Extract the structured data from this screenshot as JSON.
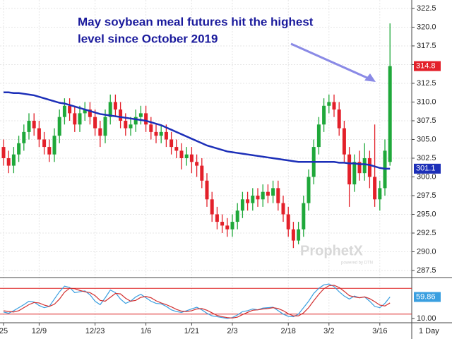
{
  "chart_data": {
    "type": "candlestick",
    "annotation": [
      "May soybean meal futures hit the highest",
      "level since October 2019"
    ],
    "watermark": {
      "title": "ProphetX",
      "subtitle": "powered by DTN"
    },
    "interval": "1 Day",
    "categories": [
      "25",
      null,
      null,
      null,
      null,
      null,
      null,
      "12/9",
      null,
      null,
      null,
      null,
      null,
      null,
      null,
      null,
      null,
      null,
      "12/23",
      null,
      null,
      null,
      null,
      null,
      null,
      null,
      null,
      null,
      "1/6",
      null,
      null,
      null,
      null,
      null,
      null,
      null,
      null,
      "1/21",
      null,
      null,
      null,
      null,
      null,
      null,
      null,
      "2/3",
      null,
      null,
      null,
      null,
      null,
      null,
      null,
      null,
      null,
      null,
      "2/18",
      null,
      null,
      null,
      null,
      null,
      null,
      null,
      "3/2",
      null,
      null,
      null,
      null,
      null,
      null,
      null,
      null,
      null,
      "3/16",
      null,
      null
    ],
    "open": [
      304.0,
      302.5,
      301.5,
      303.0,
      304.5,
      306.0,
      307.5,
      306.5,
      305.0,
      304.0,
      303.0,
      305.5,
      308.0,
      309.5,
      308.5,
      307.0,
      308.5,
      309.0,
      308.0,
      306.5,
      305.5,
      308.0,
      310.0,
      309.0,
      307.5,
      306.5,
      307.0,
      308.0,
      308.5,
      307.0,
      306.0,
      305.5,
      306.0,
      305.0,
      304.0,
      303.5,
      302.5,
      303.0,
      302.0,
      301.5,
      299.5,
      297.0,
      295.0,
      294.0,
      293.5,
      293.0,
      294.0,
      295.5,
      297.0,
      296.5,
      297.5,
      297.0,
      298.0,
      297.5,
      298.5,
      296.5,
      295.0,
      293.0,
      291.5,
      293.0,
      296.5,
      300.0,
      304.0,
      307.0,
      309.5,
      310.0,
      309.0,
      306.5,
      303.0,
      299.0,
      302.0,
      300.5,
      302.5,
      300.0,
      297.0,
      298.5,
      302.0
    ],
    "high": [
      305.0,
      303.5,
      304.0,
      305.5,
      307.0,
      308.5,
      308.5,
      307.5,
      306.0,
      305.0,
      306.5,
      309.0,
      310.5,
      310.5,
      309.5,
      309.5,
      310.0,
      310.0,
      309.0,
      307.5,
      309.0,
      311.0,
      311.0,
      310.0,
      308.5,
      308.0,
      309.0,
      309.5,
      309.5,
      308.0,
      307.0,
      307.0,
      307.0,
      306.0,
      305.0,
      304.5,
      304.0,
      304.0,
      303.0,
      302.5,
      300.5,
      298.0,
      296.0,
      295.0,
      294.5,
      295.0,
      296.5,
      298.0,
      298.0,
      298.5,
      298.5,
      299.0,
      299.0,
      299.5,
      299.5,
      297.5,
      296.0,
      294.0,
      294.0,
      297.5,
      301.0,
      305.0,
      308.0,
      310.5,
      311.0,
      311.0,
      310.0,
      307.5,
      304.0,
      303.0,
      303.5,
      304.5,
      303.5,
      307.0,
      299.5,
      305.0,
      320.5
    ],
    "low": [
      301.5,
      300.5,
      300.5,
      302.0,
      303.5,
      305.0,
      305.5,
      304.0,
      303.0,
      302.0,
      302.0,
      304.5,
      307.0,
      307.5,
      306.0,
      306.0,
      307.5,
      307.0,
      305.5,
      304.0,
      304.5,
      307.0,
      308.0,
      306.5,
      305.5,
      305.5,
      306.0,
      307.0,
      306.0,
      305.0,
      304.5,
      304.5,
      304.0,
      303.0,
      302.5,
      301.0,
      301.5,
      300.5,
      300.0,
      298.5,
      296.0,
      294.0,
      293.0,
      292.5,
      292.0,
      292.0,
      293.0,
      294.5,
      295.5,
      295.5,
      296.0,
      296.0,
      296.5,
      296.5,
      295.5,
      294.0,
      292.0,
      290.5,
      291.0,
      292.0,
      295.5,
      299.0,
      303.0,
      306.0,
      308.5,
      308.0,
      305.5,
      302.0,
      296.0,
      298.0,
      299.5,
      299.5,
      298.5,
      296.0,
      295.5,
      297.5,
      301.5
    ],
    "close": [
      302.5,
      301.5,
      303.0,
      304.5,
      306.0,
      307.5,
      306.5,
      305.0,
      304.0,
      303.0,
      305.5,
      308.0,
      309.5,
      308.5,
      307.0,
      308.5,
      309.0,
      308.0,
      306.5,
      305.5,
      308.0,
      310.0,
      309.0,
      307.5,
      306.5,
      307.0,
      308.0,
      308.5,
      307.0,
      306.0,
      305.5,
      306.0,
      305.0,
      304.0,
      303.5,
      302.5,
      303.0,
      302.0,
      301.5,
      299.5,
      297.0,
      295.0,
      294.0,
      293.5,
      293.0,
      294.0,
      295.5,
      297.0,
      296.5,
      297.5,
      297.0,
      298.0,
      297.5,
      298.5,
      296.5,
      295.0,
      293.0,
      291.5,
      293.0,
      296.5,
      300.0,
      304.0,
      307.0,
      309.5,
      310.0,
      309.0,
      306.5,
      303.0,
      299.0,
      302.0,
      300.5,
      302.5,
      300.0,
      297.0,
      298.5,
      303.5,
      314.8
    ],
    "up_color": "#1fa83a",
    "down_color": "#e3202a",
    "last_close_color": "#e3202a",
    "ylim": [
      286.65,
      323.63
    ],
    "yticks": [
      287.5,
      {
        "value": 290,
        "label": "290.0"
      },
      292.5,
      {
        "value": 295,
        "label": "295.0"
      },
      297.5,
      {
        "value": 300,
        "label": "300.0"
      },
      302.5,
      {
        "value": 305,
        "label": "305.0"
      },
      307.5,
      {
        "value": 310,
        "label": "310.0"
      },
      312.5,
      {
        "value": 315,
        "label": "315.0"
      },
      317.5,
      {
        "value": 320,
        "label": "320.0"
      },
      322.5
    ],
    "grid": true,
    "moving_average": {
      "color": "#1c2fb8",
      "values": [
        311.3,
        311.3,
        311.2,
        311.2,
        311.1,
        311.0,
        310.9,
        310.7,
        310.5,
        310.3,
        310.1,
        309.9,
        309.8,
        309.6,
        309.4,
        309.2,
        309.0,
        308.8,
        308.6,
        308.4,
        308.3,
        308.2,
        308.1,
        308.0,
        307.9,
        307.8,
        307.7,
        307.6,
        307.5,
        307.3,
        307.1,
        306.9,
        306.6,
        306.3,
        306.0,
        305.7,
        305.4,
        305.1,
        304.8,
        304.5,
        304.2,
        304.0,
        303.8,
        303.6,
        303.4,
        303.3,
        303.2,
        303.1,
        303.0,
        302.9,
        302.8,
        302.7,
        302.6,
        302.5,
        302.4,
        302.3,
        302.2,
        302.1,
        302.0,
        302.0,
        302.0,
        302.0,
        302.0,
        302.0,
        302.0,
        302.0,
        301.9,
        301.9,
        301.8,
        301.8,
        301.7,
        301.7,
        301.6,
        301.4,
        301.2,
        301.1,
        301.1
      ]
    },
    "indicator": {
      "type": "stochastic",
      "ylim": [
        0,
        100
      ],
      "yticks": [
        {
          "value": 10,
          "label": "10.00"
        }
      ],
      "reference_lines": [
        20,
        80
      ],
      "reference_color": "#d22",
      "series": [
        {
          "color": "#3a9fe0",
          "values": [
            25,
            22,
            28,
            35,
            42,
            50,
            48,
            40,
            35,
            38,
            55,
            72,
            85,
            82,
            70,
            72,
            74,
            65,
            50,
            42,
            58,
            76,
            70,
            55,
            45,
            50,
            60,
            66,
            58,
            50,
            45,
            44,
            38,
            30,
            26,
            24,
            28,
            32,
            36,
            30,
            22,
            16,
            14,
            12,
            10,
            12,
            18,
            26,
            28,
            32,
            30,
            34,
            35,
            36,
            28,
            20,
            15,
            14,
            20,
            35,
            50,
            68,
            80,
            88,
            90,
            84,
            72,
            62,
            55,
            62,
            58,
            60,
            50,
            38,
            35,
            45,
            59.86
          ]
        },
        {
          "color": "#d23030",
          "values": [
            28,
            26,
            25,
            28,
            35,
            42,
            47,
            46,
            41,
            38,
            43,
            55,
            71,
            80,
            79,
            75,
            72,
            70,
            63,
            52,
            50,
            59,
            68,
            67,
            57,
            50,
            52,
            59,
            61,
            58,
            51,
            46,
            42,
            37,
            31,
            27,
            26,
            28,
            32,
            33,
            29,
            23,
            17,
            14,
            12,
            11,
            13,
            19,
            24,
            29,
            30,
            32,
            33,
            35,
            33,
            28,
            21,
            16,
            16,
            23,
            35,
            51,
            66,
            79,
            86,
            87,
            82,
            73,
            63,
            60,
            58,
            60,
            56,
            49,
            41,
            39,
            46
          ]
        }
      ]
    }
  }
}
